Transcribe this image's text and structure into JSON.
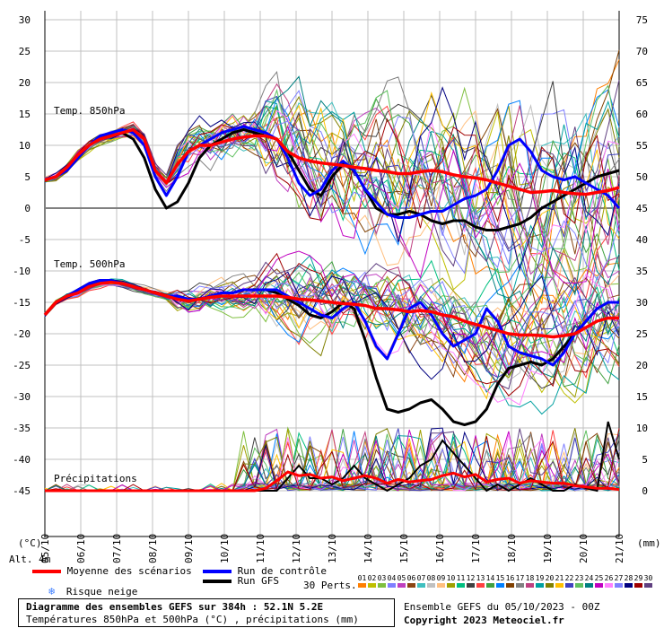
{
  "chart_data": {
    "type": "line",
    "unit_left": "(°C)",
    "unit_right": "(mm)",
    "alt_label": "Alt. 4m",
    "left_axis": {
      "range": [
        -45,
        30
      ],
      "ticks": [
        "30",
        "25",
        "20",
        "15",
        "10",
        "5",
        "0",
        "-5",
        "-10",
        "-15",
        "-20",
        "-25",
        "-30",
        "-35",
        "-40",
        "-45"
      ]
    },
    "right_axis": {
      "ticks": [
        "75",
        "70",
        "65",
        "60",
        "55",
        "50",
        "45",
        "40",
        "35",
        "30",
        "25",
        "20",
        "15",
        "10",
        "5",
        "0"
      ]
    },
    "x_ticks": [
      "05/10",
      "06/10",
      "07/10",
      "08/10",
      "09/10",
      "10/10",
      "11/10",
      "12/10",
      "13/10",
      "14/10",
      "15/10",
      "16/10",
      "17/10",
      "18/10",
      "19/10",
      "20/10",
      "21/10"
    ],
    "panel_labels": {
      "t850": "Temp. 850hPa",
      "t500": "Temp. 500hPa",
      "precip": "Précipitations"
    },
    "series": [
      {
        "name": "Moyenne des scénarios",
        "color": "#ff0000",
        "t850": [
          4.5,
          5,
          6.5,
          8.5,
          10,
          11,
          11.5,
          12,
          12.5,
          11,
          6,
          4,
          7,
          9,
          10,
          10,
          10.5,
          11,
          11.3,
          11.5,
          11.5,
          11,
          9,
          8,
          7.5,
          7.2,
          7,
          6.8,
          6.5,
          6.3,
          6,
          5.8,
          5.5,
          5.5,
          5.8,
          6,
          5.8,
          5.3,
          5,
          4.8,
          4.5,
          4,
          3.5,
          3,
          2.5,
          2.6,
          2.8,
          2.5,
          2.3,
          2.2,
          2.5,
          2.8,
          3.3
        ],
        "t500": [
          -17,
          -15,
          -14,
          -13.5,
          -12.5,
          -12,
          -11.8,
          -12,
          -12.5,
          -13,
          -13.5,
          -14,
          -14.5,
          -14.8,
          -14.5,
          -14.2,
          -14,
          -14,
          -14,
          -14,
          -14,
          -14,
          -14.2,
          -14.5,
          -14.6,
          -14.8,
          -15,
          -15.2,
          -15.3,
          -15.5,
          -16,
          -16,
          -16.2,
          -16.5,
          -16.3,
          -16.5,
          -17,
          -17.3,
          -18,
          -18.5,
          -19,
          -19.5,
          -20,
          -20.2,
          -20.2,
          -20.3,
          -20.5,
          -20.3,
          -20,
          -19,
          -18,
          -17.5,
          -17.5
        ],
        "precip": [
          0,
          0,
          0,
          0,
          0,
          0,
          0,
          0,
          0,
          0,
          0,
          0,
          0,
          0,
          0,
          0,
          0,
          0,
          0,
          0,
          0.2,
          0.8,
          1.5,
          1.2,
          1.3,
          1,
          1.1,
          0.8,
          1,
          1.2,
          1,
          0.6,
          0.9,
          0.7,
          0.8,
          0.9,
          1.2,
          1.4,
          1.1,
          1.3,
          0.7,
          0.9,
          1,
          0.6,
          0.8,
          0.7,
          0.6,
          0.6,
          0.4,
          0.3,
          0.2,
          0.2,
          0.1
        ]
      },
      {
        "name": "Run de contrôle",
        "color": "#0000ff",
        "t850": [
          4.5,
          5,
          6,
          8,
          10,
          11.5,
          12,
          12.5,
          12,
          10,
          5,
          2,
          5,
          9,
          10,
          11,
          12,
          12.5,
          13,
          12.5,
          12,
          11,
          8,
          4,
          2,
          3,
          6,
          7.5,
          6,
          3,
          1,
          -1,
          -1.5,
          -1.5,
          -1,
          -0.5,
          -0.5,
          0.5,
          1.5,
          2,
          3,
          6,
          10,
          11,
          9,
          6,
          5,
          4.5,
          5,
          4,
          3,
          2,
          0
        ],
        "t500": [
          -17,
          -15,
          -14,
          -13,
          -12,
          -11.5,
          -11.5,
          -12,
          -12.5,
          -13,
          -13.5,
          -14,
          -14,
          -14.5,
          -14.5,
          -14,
          -13.5,
          -13.5,
          -13,
          -13,
          -13,
          -13,
          -14,
          -15,
          -16,
          -17,
          -17.5,
          -16,
          -15,
          -18,
          -22,
          -24,
          -20,
          -16,
          -15,
          -17,
          -20,
          -22,
          -21,
          -20,
          -16,
          -18,
          -22,
          -23,
          -23.5,
          -24,
          -25,
          -23,
          -20,
          -18,
          -16,
          -15,
          -15
        ]
      },
      {
        "name": "Run GFS",
        "color": "#000000",
        "t850": [
          4.5,
          5,
          6,
          8,
          10,
          11,
          11.5,
          12,
          11,
          8,
          3,
          0,
          1,
          4,
          8,
          10,
          11,
          12,
          12.5,
          12,
          11.5,
          11,
          9,
          6,
          3,
          2,
          5,
          7,
          6,
          3,
          0,
          -1,
          -1,
          -0.5,
          -1,
          -2,
          -2.5,
          -2,
          -2,
          -3,
          -3.5,
          -3.5,
          -3,
          -2.5,
          -1.5,
          0,
          1,
          2,
          3,
          4,
          5,
          5.5,
          6
        ],
        "t500": [
          -17,
          -15,
          -14,
          -13,
          -12,
          -11.5,
          -11.5,
          -12,
          -12.5,
          -13,
          -13.5,
          -14,
          -14,
          -14.5,
          -14.5,
          -14,
          -13.5,
          -13.5,
          -13,
          -13,
          -13,
          -13.5,
          -14.5,
          -15.5,
          -17,
          -17.5,
          -16.5,
          -15,
          -16,
          -21,
          -27,
          -32,
          -32.5,
          -32,
          -31,
          -30.5,
          -32,
          -34,
          -34.5,
          -34,
          -32,
          -28,
          -25.5,
          -25,
          -24.5,
          -25,
          -24,
          -22,
          -20,
          -18,
          -16,
          -15,
          -15
        ],
        "precip": [
          0,
          0,
          0,
          0,
          0,
          0,
          0,
          0,
          0,
          0,
          0,
          0,
          0,
          0,
          0,
          0,
          0,
          0,
          0,
          0,
          0,
          0,
          1,
          2,
          1,
          1,
          0.5,
          1,
          2,
          1,
          0.5,
          0,
          0.5,
          1,
          2,
          2.5,
          4,
          3,
          2,
          1,
          0,
          0.5,
          0,
          0.5,
          1,
          0.5,
          0,
          0,
          0.5,
          0.2,
          0,
          5.5,
          2.5
        ]
      }
    ],
    "perturbation_count": 30,
    "perturbation_label": "30 Perts.",
    "perturbation_numbers": [
      "01",
      "02",
      "03",
      "04",
      "05",
      "06",
      "07",
      "08",
      "09",
      "10",
      "11",
      "12",
      "13",
      "14",
      "15",
      "16",
      "17",
      "18",
      "19",
      "20",
      "21",
      "22",
      "23",
      "24",
      "25",
      "26",
      "27",
      "28",
      "29",
      "30"
    ],
    "perturbation_colors": [
      "#ff7f00",
      "#bfbf00",
      "#7fbf3f",
      "#7f7fff",
      "#bf3fbf",
      "#8b4513",
      "#3fbfbf",
      "#c0c0c0",
      "#ffbf7f",
      "#a0a000",
      "#00bf7f",
      "#404040",
      "#ff4040",
      "#40a040",
      "#0080ff",
      "#804000",
      "#808080",
      "#c04080",
      "#00a0a0",
      "#808000",
      "#ffc000",
      "#4040c0",
      "#60c060",
      "#008080",
      "#c000c0",
      "#ff80ff",
      "#8080ff",
      "#000080",
      "#a00000",
      "#604080"
    ],
    "snow_risk_label": "Risque neige"
  },
  "footer": {
    "title": "Diagramme des ensembles GEFS sur 384h : 52.1N 5.2E",
    "subtitle": "Températures 850hPa et 500hPa (°C) , précipitations (mm)",
    "run_info": "Ensemble GEFS du 05/10/2023 - 00Z",
    "copyright": "Copyright 2023 Meteociel.fr"
  }
}
